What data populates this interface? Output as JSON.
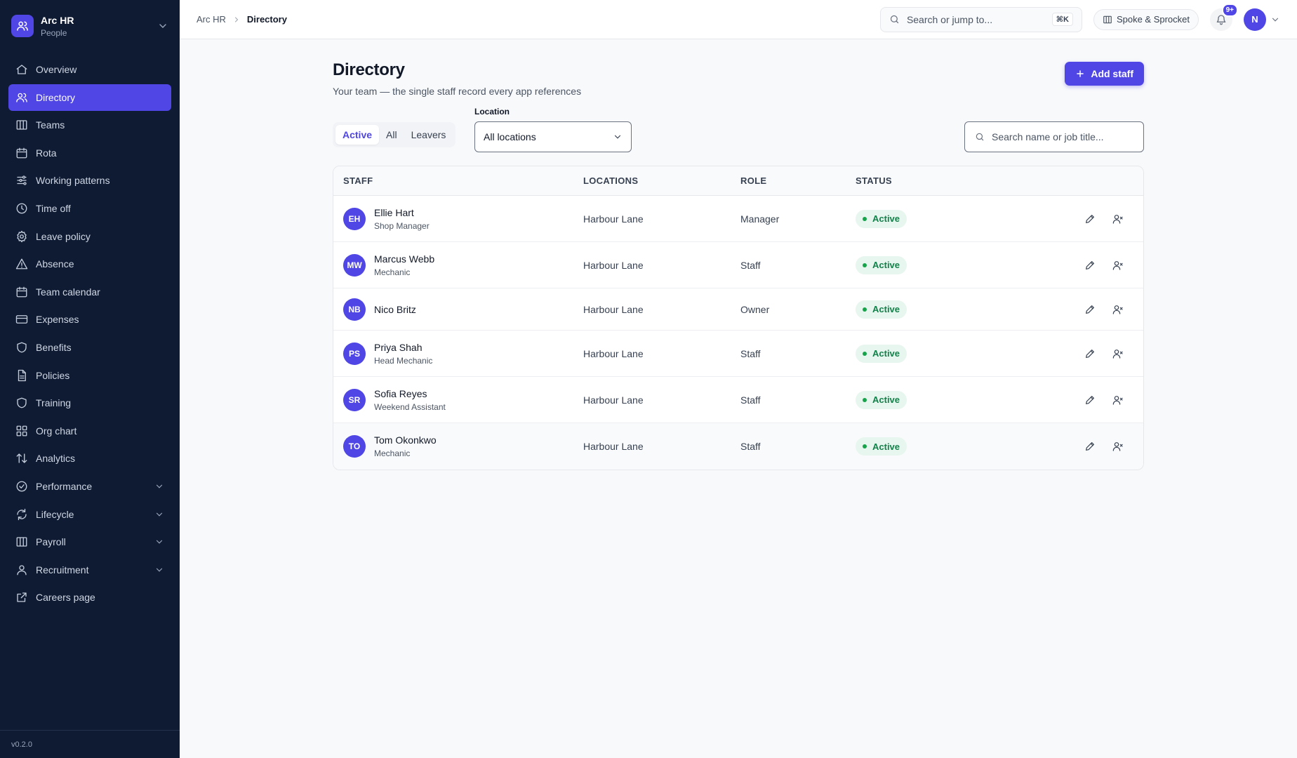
{
  "app": {
    "name": "Arc HR",
    "module": "People",
    "version": "v0.2.0"
  },
  "nav": [
    {
      "label": "Overview",
      "icon": "home-icon"
    },
    {
      "label": "Directory",
      "icon": "users-icon",
      "active": true
    },
    {
      "label": "Teams",
      "icon": "building-icon"
    },
    {
      "label": "Rota",
      "icon": "calendar-icon"
    },
    {
      "label": "Working patterns",
      "icon": "sliders-icon"
    },
    {
      "label": "Time off",
      "icon": "clock-icon"
    },
    {
      "label": "Leave policy",
      "icon": "gear-icon"
    },
    {
      "label": "Absence",
      "icon": "warning-icon"
    },
    {
      "label": "Team calendar",
      "icon": "calendar-icon"
    },
    {
      "label": "Expenses",
      "icon": "card-icon"
    },
    {
      "label": "Benefits",
      "icon": "shield-icon"
    },
    {
      "label": "Policies",
      "icon": "document-icon"
    },
    {
      "label": "Training",
      "icon": "shield-icon"
    },
    {
      "label": "Org chart",
      "icon": "grid-icon"
    },
    {
      "label": "Analytics",
      "icon": "sort-arrows-icon"
    },
    {
      "label": "Performance",
      "icon": "check-circle-icon",
      "expandable": true
    },
    {
      "label": "Lifecycle",
      "icon": "refresh-icon",
      "expandable": true
    },
    {
      "label": "Payroll",
      "icon": "building-icon",
      "expandable": true
    },
    {
      "label": "Recruitment",
      "icon": "user-icon",
      "expandable": true
    },
    {
      "label": "Careers page",
      "icon": "external-link-icon"
    }
  ],
  "header": {
    "breadcrumb": [
      "Arc HR",
      "Directory"
    ],
    "search_placeholder": "Search or jump to...",
    "search_shortcut": "⌘K",
    "org_name": "Spoke & Sprocket",
    "notifications_badge": "9+",
    "user_initial": "N"
  },
  "page": {
    "title": "Directory",
    "subtitle": "Your team — the single staff record every app references",
    "add_button": "Add staff"
  },
  "filters": {
    "tabs": [
      "Active",
      "All",
      "Leavers"
    ],
    "active_tab": "Active",
    "location_label": "Location",
    "location_value": "All locations",
    "search_placeholder": "Search name or job title..."
  },
  "table": {
    "columns": [
      "STAFF",
      "LOCATIONS",
      "ROLE",
      "STATUS"
    ],
    "rows": [
      {
        "initials": "EH",
        "name": "Ellie Hart",
        "title": "Shop Manager",
        "location": "Harbour Lane",
        "role": "Manager",
        "status": "Active"
      },
      {
        "initials": "MW",
        "name": "Marcus Webb",
        "title": "Mechanic",
        "location": "Harbour Lane",
        "role": "Staff",
        "status": "Active"
      },
      {
        "initials": "NB",
        "name": "Nico Britz",
        "title": "",
        "location": "Harbour Lane",
        "role": "Owner",
        "status": "Active"
      },
      {
        "initials": "PS",
        "name": "Priya Shah",
        "title": "Head Mechanic",
        "location": "Harbour Lane",
        "role": "Staff",
        "status": "Active"
      },
      {
        "initials": "SR",
        "name": "Sofia Reyes",
        "title": "Weekend Assistant",
        "location": "Harbour Lane",
        "role": "Staff",
        "status": "Active"
      },
      {
        "initials": "TO",
        "name": "Tom Okonkwo",
        "title": "Mechanic",
        "location": "Harbour Lane",
        "role": "Staff",
        "status": "Active"
      }
    ]
  },
  "colors": {
    "sidebar": "#0f1b33",
    "accent": "#4f46e5",
    "status_bg": "#e7f6ee",
    "status_text": "#14804a"
  }
}
